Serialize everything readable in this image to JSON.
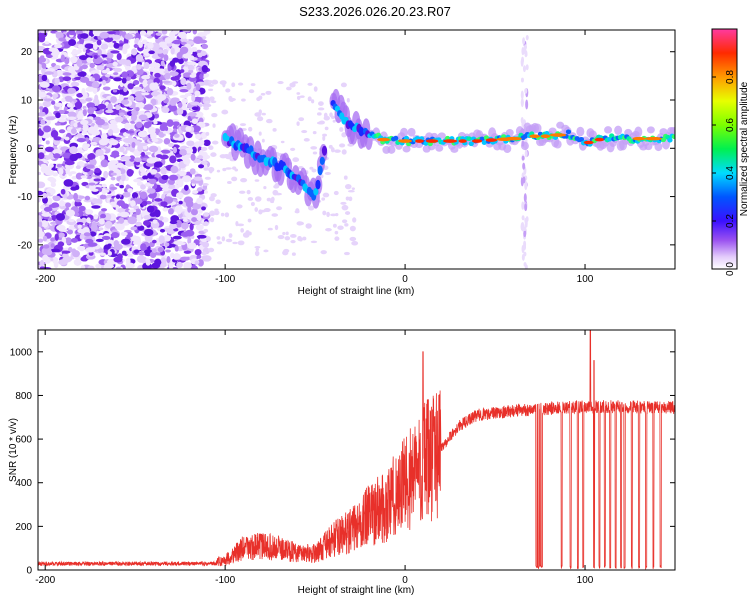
{
  "title": "S233.2026.026.20.23.R07",
  "colors": {
    "snr_line": "#e8302a",
    "axis": "#000000"
  },
  "chart_data": [
    {
      "type": "heatmap",
      "name": "spectrogram",
      "xlabel": "Height of straight line (km)",
      "ylabel": "Frequency (Hz)",
      "xlim": [
        -204,
        150
      ],
      "ylim": [
        -25,
        24.5
      ],
      "xticks": [
        -200,
        -100,
        0,
        100
      ],
      "yticks": [
        -20,
        -10,
        0,
        10,
        20
      ],
      "ridge": [
        {
          "x": -100,
          "y": 2
        },
        {
          "x": -90,
          "y": 0
        },
        {
          "x": -80,
          "y": -2
        },
        {
          "x": -70,
          "y": -3.5
        },
        {
          "x": -60,
          "y": -6
        },
        {
          "x": -50,
          "y": -10
        },
        {
          "x": -40,
          "y": 9
        },
        {
          "x": -30,
          "y": 4.5
        },
        {
          "x": -20,
          "y": 3
        },
        {
          "x": -10,
          "y": 1.5
        },
        {
          "x": 0,
          "y": 1.5
        },
        {
          "x": 20,
          "y": 1.5
        },
        {
          "x": 40,
          "y": 1.5
        },
        {
          "x": 60,
          "y": 2
        },
        {
          "x": 70,
          "y": 2.5
        },
        {
          "x": 80,
          "y": 2.5
        },
        {
          "x": 90,
          "y": 3
        },
        {
          "x": 100,
          "y": 1
        },
        {
          "x": 110,
          "y": 2
        },
        {
          "x": 130,
          "y": 2
        },
        {
          "x": 150,
          "y": 2
        }
      ],
      "colorbar": {
        "label": "Normalized spectral amplitude",
        "range": [
          0,
          1
        ],
        "ticks": [
          "0.0",
          "0.2",
          "0.4",
          "0.6",
          "0.8"
        ]
      }
    },
    {
      "type": "line",
      "name": "snr",
      "xlabel": "Height of straight line (km)",
      "ylabel": "SNR (10 * v/v)",
      "xlim": [
        -204,
        150
      ],
      "ylim": [
        0,
        1100
      ],
      "xticks": [
        -200,
        -100,
        0,
        100
      ],
      "yticks": [
        0,
        200,
        400,
        600,
        800,
        1000
      ],
      "envelope": [
        {
          "x": -204,
          "y": 20
        },
        {
          "x": -110,
          "y": 25
        },
        {
          "x": -100,
          "y": 45
        },
        {
          "x": -90,
          "y": 100
        },
        {
          "x": -80,
          "y": 110
        },
        {
          "x": -70,
          "y": 100
        },
        {
          "x": -60,
          "y": 80
        },
        {
          "x": -50,
          "y": 75
        },
        {
          "x": -40,
          "y": 140
        },
        {
          "x": -30,
          "y": 180
        },
        {
          "x": -20,
          "y": 250
        },
        {
          "x": -10,
          "y": 300
        },
        {
          "x": 0,
          "y": 400
        },
        {
          "x": 10,
          "y": 480
        },
        {
          "x": 20,
          "y": 560
        },
        {
          "x": 30,
          "y": 660
        },
        {
          "x": 40,
          "y": 710
        },
        {
          "x": 60,
          "y": 730
        },
        {
          "x": 80,
          "y": 740
        },
        {
          "x": 100,
          "y": 750
        },
        {
          "x": 150,
          "y": 745
        }
      ],
      "dropouts_x": [
        73,
        74,
        75,
        76,
        87,
        92,
        96,
        99,
        105,
        108,
        111,
        114,
        117,
        120,
        122,
        126,
        130,
        134,
        138,
        142
      ],
      "peaks": [
        {
          "x": 10,
          "y": 1000
        },
        {
          "x": 103,
          "y": 1100
        },
        {
          "x": 105,
          "y": 960
        }
      ]
    }
  ]
}
